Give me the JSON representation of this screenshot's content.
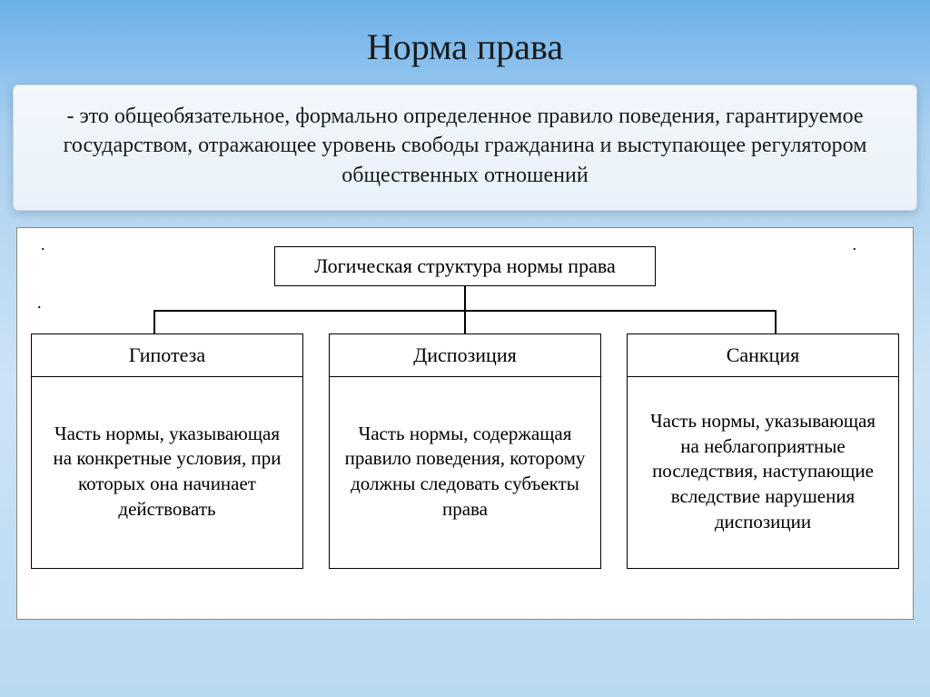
{
  "title": "Норма права",
  "definition": "- это общеобязательное, формально определенное правило поведения, гарантируемое государством, отражающее уровень свободы гражданина и выступающее регулятором общественных отношений",
  "diagram": {
    "type": "tree",
    "root_label": "Логическая структура нормы права",
    "background_color": "#ffffff",
    "border_color": "#000000",
    "line_color": "#000000",
    "title_fontsize": 22,
    "body_fontsize": 21,
    "children": [
      {
        "title": "Гипотеза",
        "body": "Часть нормы, указывающая на конкретные условия, при которых она начинает действовать"
      },
      {
        "title": "Диспозиция",
        "body": "Часть нормы, содержащая правило поведения, которому должны следовать субъекты права"
      },
      {
        "title": "Санкция",
        "body": "Часть нормы, указывающая на неблагоприятные последствия, наступающие вследствие нарушения диспозиции"
      }
    ]
  },
  "style": {
    "slide_gradient": [
      "#6aafe8",
      "#a9d0f0",
      "#cde3f5",
      "#b8d9f2"
    ],
    "title_fontsize": 40,
    "definition_fontsize": 24,
    "definition_bg": "#eef5fb",
    "definition_border": "#c4d6e6"
  }
}
